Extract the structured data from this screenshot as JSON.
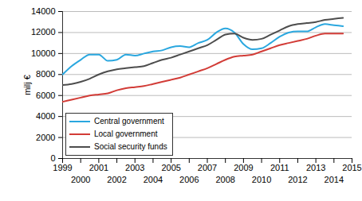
{
  "chart_data": {
    "type": "line",
    "y_label": "milj €",
    "x": [
      1999,
      1999.5,
      2000,
      2000.5,
      2001,
      2001.5,
      2002,
      2002.5,
      2003,
      2003.5,
      2004,
      2004.5,
      2005,
      2005.5,
      2006,
      2006.5,
      2007,
      2007.5,
      2008,
      2008.5,
      2009,
      2009.5,
      2010,
      2010.5,
      2011,
      2011.5,
      2012,
      2012.5,
      2013,
      2013.5,
      2014,
      2014.5
    ],
    "series": [
      {
        "name": "Central government",
        "color": "#2aa7df",
        "values": [
          8000,
          8800,
          9400,
          9900,
          9900,
          9300,
          9400,
          9900,
          9800,
          10000,
          10200,
          10300,
          10600,
          10700,
          10600,
          11000,
          11300,
          12000,
          12400,
          12000,
          10900,
          10400,
          10500,
          11000,
          11600,
          12000,
          12100,
          12100,
          12500,
          12800,
          12700,
          12600
        ]
      },
      {
        "name": "Local government",
        "color": "#d23c37",
        "values": [
          5400,
          5600,
          5800,
          6000,
          6100,
          6200,
          6500,
          6700,
          6800,
          6900,
          7100,
          7300,
          7500,
          7700,
          8000,
          8300,
          8600,
          9000,
          9400,
          9700,
          9800,
          9900,
          10200,
          10500,
          10800,
          11000,
          11200,
          11400,
          11700,
          11900,
          11900,
          11900
        ]
      },
      {
        "name": "Social security funds",
        "color": "#4d4d4d",
        "values": [
          7000,
          7100,
          7300,
          7600,
          8000,
          8300,
          8500,
          8600,
          8700,
          8800,
          9100,
          9400,
          9600,
          9900,
          10200,
          10500,
          10800,
          11300,
          11800,
          11900,
          11500,
          11300,
          11400,
          11800,
          12200,
          12600,
          12800,
          12900,
          13000,
          13200,
          13300,
          13400
        ]
      }
    ],
    "xlim": [
      1999,
      2015
    ],
    "xticks": [
      1999,
      2000,
      2001,
      2002,
      2003,
      2004,
      2005,
      2006,
      2007,
      2008,
      2009,
      2010,
      2011,
      2012,
      2013,
      2014,
      2015
    ],
    "ylim": [
      0,
      14000
    ],
    "yticks": [
      0,
      2000,
      4000,
      6000,
      8000,
      10000,
      12000,
      14000
    ],
    "grid": true,
    "legend": "bottom-left"
  }
}
